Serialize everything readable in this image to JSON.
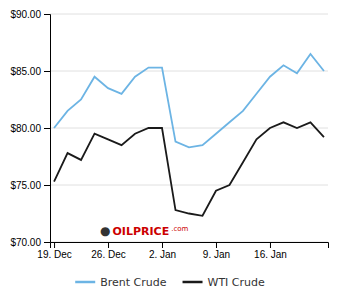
{
  "chart_data": {
    "type": "line",
    "categories": [
      "19. Dec",
      null,
      null,
      null,
      "26. Dec",
      null,
      null,
      null,
      "2. Jan",
      null,
      null,
      null,
      "9. Jan",
      null,
      null,
      null,
      "16. Jan",
      null,
      null,
      null,
      null
    ],
    "series": [
      {
        "name": "Brent Crude",
        "color": "#6cb4e4",
        "values": [
          80.0,
          81.5,
          82.5,
          84.5,
          83.5,
          83.0,
          84.5,
          85.3,
          85.3,
          78.8,
          78.3,
          78.5,
          79.5,
          80.5,
          81.5,
          83.0,
          84.5,
          85.5,
          84.8,
          86.5,
          85.0
        ]
      },
      {
        "name": "WTI Crude",
        "color": "#1a1a1a",
        "values": [
          75.3,
          77.8,
          77.2,
          79.5,
          79.0,
          78.5,
          79.5,
          80.0,
          80.0,
          72.8,
          72.5,
          72.3,
          74.5,
          75.0,
          77.0,
          79.0,
          80.0,
          80.5,
          80.0,
          80.5,
          79.2
        ]
      }
    ],
    "ylim": [
      70.0,
      90.0
    ],
    "yticks": [
      {
        "value": 70.0,
        "label": "$70.00"
      },
      {
        "value": 75.0,
        "label": "$75.00"
      },
      {
        "value": 80.0,
        "label": "$80.00"
      },
      {
        "value": 85.0,
        "label": "$85.00"
      },
      {
        "value": 90.0,
        "label": "$90.00"
      }
    ],
    "grid": true,
    "legend": "bottom",
    "annotations": [
      "●",
      "OILPRICE",
      ".com"
    ]
  }
}
